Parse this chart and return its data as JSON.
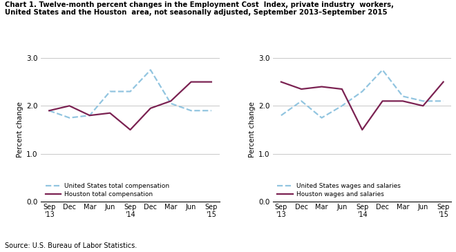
{
  "title_line1": "Chart 1. Twelve-month percent changes in the Employment Cost  Index, private industry  workers,",
  "title_line2": "United States and the Houston  area, not seasonally adjusted, September 2013–September 2015",
  "ylabel": "Percent change",
  "source": "Source: U.S. Bureau of Labor Statistics.",
  "ylim": [
    0.0,
    3.0
  ],
  "yticks": [
    0.0,
    1.0,
    2.0,
    3.0
  ],
  "left_chart": {
    "us_total_comp": [
      1.9,
      1.75,
      1.8,
      2.3,
      2.3,
      2.75,
      2.05,
      1.9,
      1.9
    ],
    "houston_total_comp": [
      1.9,
      2.0,
      1.8,
      1.85,
      1.5,
      1.95,
      2.1,
      2.5,
      2.5
    ],
    "x_labels": [
      "Sep\n'13",
      "Dec",
      "Mar",
      "Jun",
      "Sep\n'14",
      "Dec",
      "Mar",
      "Jun",
      "Sep\n'15"
    ],
    "legend_us": "United States total compensation",
    "legend_houston": "Houston total compensation"
  },
  "right_chart": {
    "us_wages": [
      1.8,
      2.1,
      1.75,
      2.0,
      2.3,
      2.75,
      2.2,
      2.1,
      2.1
    ],
    "houston_wages": [
      2.5,
      2.35,
      2.4,
      2.35,
      1.5,
      2.1,
      2.1,
      2.0,
      2.5
    ],
    "x_labels": [
      "Sep\n'13",
      "Dec",
      "Mar",
      "Jun",
      "Sep\n'14",
      "Dec",
      "Mar",
      "Jun",
      "Sep\n'15"
    ],
    "legend_us": "United States wages and salaries",
    "legend_houston": "Houston wages and salaries"
  },
  "us_color": "#92C5E0",
  "houston_color": "#7B2252",
  "linewidth": 1.6,
  "grid_color": "#c8c8c8",
  "background_color": "#ffffff"
}
